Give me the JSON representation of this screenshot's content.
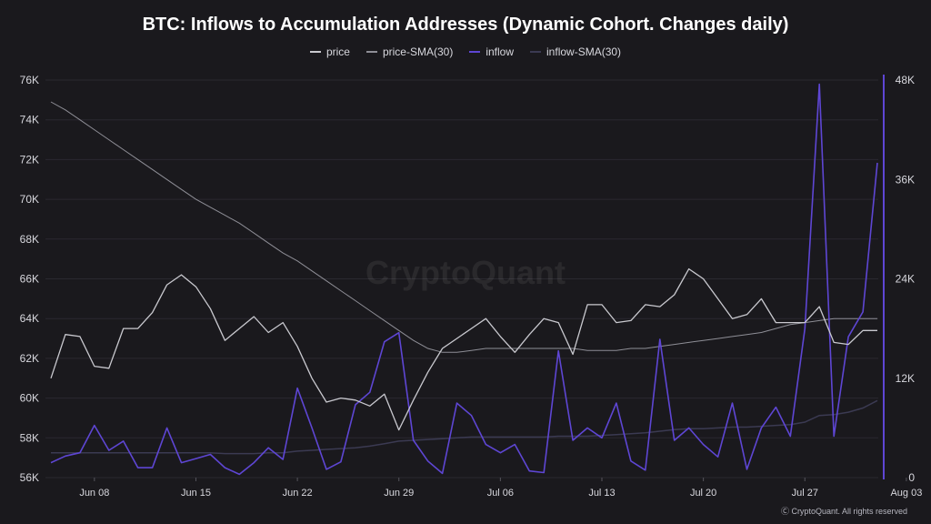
{
  "chart_data": {
    "type": "line",
    "title": "BTC: Inflows to Accumulation Addresses (Dynamic Cohort. Changes daily)",
    "watermark": "CryptoQuant",
    "footer": "Ⓒ CryptoQuant. All rights reserved",
    "x_ticks": [
      "Jun 08",
      "Jun 15",
      "Jun 22",
      "Jun 29",
      "Jul 06",
      "Jul 13",
      "Jul 20",
      "Jul 27",
      "Aug 03"
    ],
    "left_axis": {
      "ticks": [
        "76K",
        "74K",
        "72K",
        "70K",
        "68K",
        "66K",
        "64K",
        "62K",
        "60K",
        "58K",
        "56K"
      ],
      "ylim": [
        56000,
        76000
      ]
    },
    "right_axis": {
      "ticks": [
        "48K",
        "36K",
        "24K",
        "12K",
        "0"
      ],
      "ylim": [
        0,
        48000
      ]
    },
    "grid": "horizontal",
    "legend_position": "top-center",
    "colors": {
      "price": "#c9c9cf",
      "price_sma": "#8e8e96",
      "inflow": "#5e46d4",
      "inflow_sma": "#3b3a52"
    },
    "series": [
      {
        "name": "price",
        "values": [
          61000,
          63200,
          63100,
          61600,
          61500,
          63500,
          63500,
          64300,
          65700,
          66200,
          65600,
          64500,
          62900,
          63500,
          64100,
          63300,
          63800,
          62600,
          61000,
          59800,
          60000,
          59900,
          59600,
          60200,
          58400,
          59900,
          61300,
          62500,
          63000,
          63500,
          64000,
          63100,
          62300,
          63200,
          64000,
          63800,
          62200,
          64700,
          64700,
          63800,
          63900,
          64700,
          64600,
          65200,
          66500,
          66000,
          65000,
          64000,
          64200,
          65000,
          63800,
          63800,
          63800,
          64600,
          62800,
          62700,
          63400,
          63400
        ]
      },
      {
        "name": "price-SMA(30)",
        "values": [
          74900,
          74500,
          74000,
          73500,
          73000,
          72500,
          72000,
          71500,
          71000,
          70500,
          70000,
          69600,
          69200,
          68800,
          68300,
          67800,
          67300,
          66900,
          66400,
          65900,
          65400,
          64900,
          64400,
          63900,
          63400,
          62900,
          62500,
          62300,
          62300,
          62400,
          62500,
          62500,
          62500,
          62500,
          62500,
          62500,
          62500,
          62400,
          62400,
          62400,
          62500,
          62500,
          62600,
          62700,
          62800,
          62900,
          63000,
          63100,
          63200,
          63300,
          63500,
          63700,
          63800,
          63900,
          64000,
          64000,
          64000,
          64000
        ]
      },
      {
        "name": "inflow",
        "values": [
          1800,
          2600,
          3000,
          6300,
          3300,
          4400,
          1200,
          1200,
          6000,
          1800,
          2300,
          2800,
          1200,
          400,
          1800,
          3600,
          2200,
          10800,
          6000,
          1000,
          1900,
          8800,
          10300,
          16400,
          17500,
          4500,
          2000,
          500,
          9000,
          7500,
          4000,
          3000,
          4000,
          800,
          600,
          15300,
          4500,
          6000,
          4800,
          9000,
          2000,
          900,
          16700,
          4500,
          6000,
          4000,
          2500,
          9000,
          1000,
          6000,
          8500,
          5000,
          18000,
          47500,
          5000,
          17000,
          20000,
          38000
        ]
      },
      {
        "name": "inflow-SMA(30)",
        "values": [
          3000,
          3000,
          3000,
          3000,
          3000,
          3000,
          3000,
          3000,
          3000,
          3000,
          3000,
          3000,
          2900,
          2900,
          2900,
          3000,
          3000,
          3200,
          3300,
          3400,
          3500,
          3600,
          3800,
          4100,
          4400,
          4500,
          4600,
          4700,
          4800,
          4900,
          4900,
          4900,
          4900,
          4900,
          4900,
          5000,
          5000,
          5000,
          5100,
          5200,
          5300,
          5400,
          5600,
          5800,
          5900,
          5900,
          6000,
          6100,
          6100,
          6200,
          6300,
          6400,
          6700,
          7500,
          7600,
          7900,
          8400,
          9300
        ]
      }
    ]
  }
}
